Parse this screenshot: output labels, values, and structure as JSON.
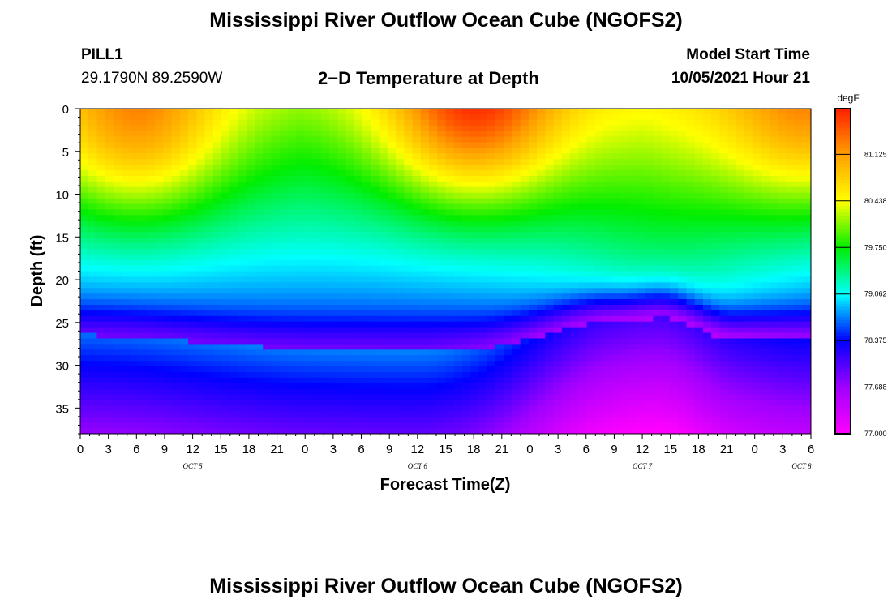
{
  "header": {
    "title": "Mississippi River Outflow Ocean Cube (NGOFS2)",
    "footer_title": "Mississippi River Outflow Ocean Cube (NGOFS2)",
    "station": "PILL1",
    "coords": "29.1790N  89.2590W",
    "model_start_label": "Model Start Time",
    "model_start_value": "10/05/2021 Hour 21"
  },
  "chart_data": {
    "type": "heatmap",
    "title": "2−D Temperature at Depth",
    "xlabel": "Forecast Time(Z)",
    "ylabel": "Depth (ft)",
    "x_tick_labels": [
      "0",
      "3",
      "6",
      "9",
      "12",
      "15",
      "18",
      "21",
      "0",
      "3",
      "6",
      "9",
      "12",
      "15",
      "18",
      "21",
      "0",
      "3",
      "6",
      "9",
      "12",
      "15",
      "18",
      "21",
      "0",
      "3",
      "6"
    ],
    "x_day_labels": [
      {
        "label": "OCT 5",
        "hour": 12
      },
      {
        "label": "OCT 6",
        "hour": 36
      },
      {
        "label": "OCT 7",
        "hour": 60
      },
      {
        "label": "OCT 8",
        "hour": 77
      }
    ],
    "xlim": [
      0,
      78
    ],
    "ylim": [
      0,
      38
    ],
    "y_ticks": [
      0,
      5,
      10,
      15,
      20,
      25,
      30,
      35
    ],
    "colorbar": {
      "unit": "degF",
      "range": [
        77.0,
        81.8
      ],
      "tick_labels": [
        "81.125",
        "80.438",
        "79.750",
        "79.062",
        "78.375",
        "77.688",
        "77.000"
      ],
      "tick_values": [
        81.125,
        80.438,
        79.75,
        79.062,
        78.375,
        77.688,
        77.0
      ],
      "colors": [
        "#ff00ff",
        "#a000ff",
        "#0000ff",
        "#00ffff",
        "#00ee00",
        "#ffff00",
        "#ffa000",
        "#ff2000"
      ]
    },
    "thermocline_depth_by_hour": [
      {
        "hour": 0,
        "depth": 24.5
      },
      {
        "hour": 24,
        "depth": 26.0
      },
      {
        "hour": 42,
        "depth": 26.0
      },
      {
        "hour": 57,
        "depth": 23.0
      },
      {
        "hour": 62,
        "depth": 22.5
      },
      {
        "hour": 70,
        "depth": 25.0
      },
      {
        "hour": 78,
        "depth": 25.0
      }
    ],
    "surface_warm_centers": [
      {
        "hour": 6,
        "depth": 2,
        "value": 81.4
      },
      {
        "hour": 42,
        "depth": 0,
        "value": 81.8
      },
      {
        "hour": 78,
        "depth": 1,
        "value": 81.3
      }
    ],
    "deep_values_by_hour": [
      {
        "hour": 0,
        "value": 77.6
      },
      {
        "hour": 36,
        "value": 77.7
      },
      {
        "hour": 60,
        "value": 77.0
      },
      {
        "hour": 78,
        "value": 77.3
      }
    ]
  }
}
